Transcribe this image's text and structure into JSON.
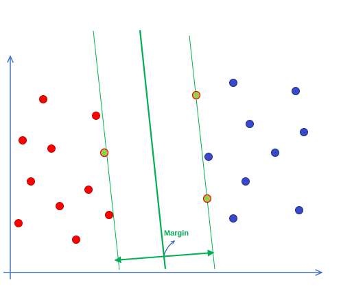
{
  "diagram": {
    "margin_label": "Margin",
    "colors": {
      "axis": "#4472c4",
      "line": "#00b050",
      "class_a_fill": "#ff0000",
      "class_a_stroke": "#c00000",
      "class_b_fill": "#3a49c9",
      "class_b_stroke": "#1f2d8f",
      "support_vector_fill": "#92d050",
      "support_vector_stroke": "#ff0000",
      "background": "#ffffff"
    },
    "class_a_points": 12,
    "class_b_points": 11,
    "support_vectors": 3
  }
}
